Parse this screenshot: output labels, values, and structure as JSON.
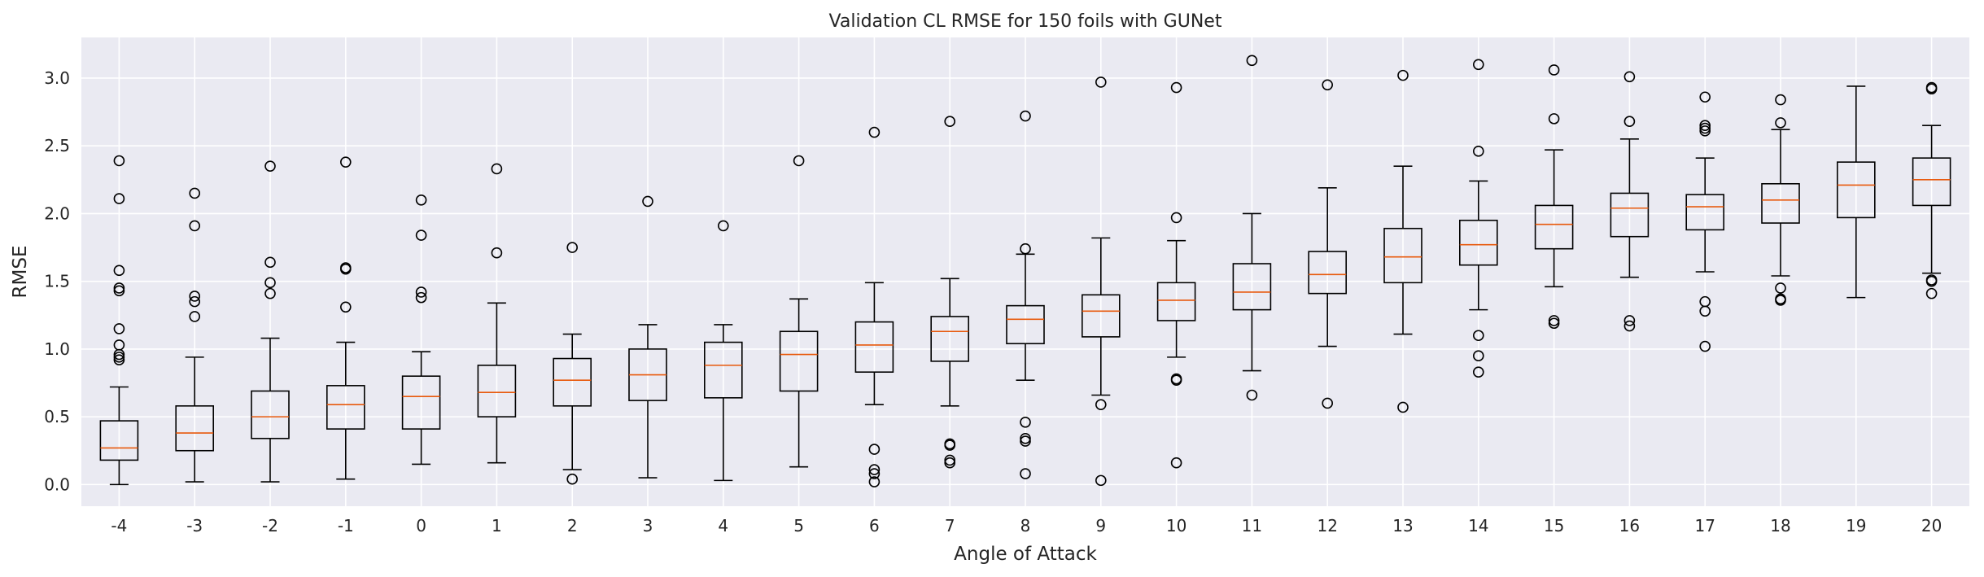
{
  "chart_data": {
    "type": "box",
    "title": "Validation CL RMSE for 150 foils with GUNet",
    "xlabel": "Angle of Attack",
    "ylabel": "RMSE",
    "ylim": [
      -0.16,
      3.3
    ],
    "yticks": [
      "0.0",
      "0.5",
      "1.0",
      "1.5",
      "2.0",
      "2.5",
      "3.0"
    ],
    "grid": true,
    "categories": [
      "-4",
      "-3",
      "-2",
      "-1",
      "0",
      "1",
      "2",
      "3",
      "4",
      "5",
      "6",
      "7",
      "8",
      "9",
      "10",
      "11",
      "12",
      "13",
      "14",
      "15",
      "16",
      "17",
      "18",
      "19",
      "20"
    ],
    "boxes": [
      {
        "whislo": 0.0,
        "q1": 0.18,
        "med": 0.27,
        "q3": 0.47,
        "whishi": 0.72,
        "fliers": [
          0.92,
          0.94,
          0.96,
          1.03,
          1.15,
          1.43,
          1.45,
          1.58,
          2.11,
          2.39
        ]
      },
      {
        "whislo": 0.02,
        "q1": 0.25,
        "med": 0.38,
        "q3": 0.58,
        "whishi": 0.94,
        "fliers": [
          1.24,
          1.35,
          1.39,
          1.91,
          2.15
        ]
      },
      {
        "whislo": 0.02,
        "q1": 0.34,
        "med": 0.5,
        "q3": 0.69,
        "whishi": 1.08,
        "fliers": [
          1.41,
          1.49,
          1.64,
          2.35
        ]
      },
      {
        "whislo": 0.04,
        "q1": 0.41,
        "med": 0.59,
        "q3": 0.73,
        "whishi": 1.05,
        "fliers": [
          1.31,
          1.59,
          1.6,
          2.38
        ]
      },
      {
        "whislo": 0.15,
        "q1": 0.41,
        "med": 0.65,
        "q3": 0.8,
        "whishi": 0.98,
        "fliers": [
          1.38,
          1.42,
          1.84,
          2.1
        ]
      },
      {
        "whislo": 0.16,
        "q1": 0.5,
        "med": 0.68,
        "q3": 0.88,
        "whishi": 1.34,
        "fliers": [
          1.71,
          2.33
        ]
      },
      {
        "whislo": 0.11,
        "q1": 0.58,
        "med": 0.77,
        "q3": 0.93,
        "whishi": 1.11,
        "fliers": [
          0.04,
          1.75
        ]
      },
      {
        "whislo": 0.05,
        "q1": 0.62,
        "med": 0.81,
        "q3": 1.0,
        "whishi": 1.18,
        "fliers": [
          2.09
        ]
      },
      {
        "whislo": 0.03,
        "q1": 0.64,
        "med": 0.88,
        "q3": 1.05,
        "whishi": 1.18,
        "fliers": [
          1.91
        ]
      },
      {
        "whislo": 0.13,
        "q1": 0.69,
        "med": 0.96,
        "q3": 1.13,
        "whishi": 1.37,
        "fliers": [
          2.39
        ]
      },
      {
        "whislo": 0.59,
        "q1": 0.83,
        "med": 1.03,
        "q3": 1.2,
        "whishi": 1.49,
        "fliers": [
          0.02,
          0.08,
          0.11,
          0.26,
          2.6
        ]
      },
      {
        "whislo": 0.58,
        "q1": 0.91,
        "med": 1.13,
        "q3": 1.24,
        "whishi": 1.52,
        "fliers": [
          0.16,
          0.18,
          0.29,
          0.3,
          2.68
        ]
      },
      {
        "whislo": 0.77,
        "q1": 1.04,
        "med": 1.22,
        "q3": 1.32,
        "whishi": 1.7,
        "fliers": [
          0.08,
          0.32,
          0.34,
          0.46,
          1.74,
          2.72
        ]
      },
      {
        "whislo": 0.66,
        "q1": 1.09,
        "med": 1.28,
        "q3": 1.4,
        "whishi": 1.82,
        "fliers": [
          0.03,
          0.59,
          2.97
        ]
      },
      {
        "whislo": 0.94,
        "q1": 1.21,
        "med": 1.36,
        "q3": 1.49,
        "whishi": 1.8,
        "fliers": [
          0.16,
          0.77,
          0.78,
          1.97,
          2.93
        ]
      },
      {
        "whislo": 0.84,
        "q1": 1.29,
        "med": 1.42,
        "q3": 1.63,
        "whishi": 2.0,
        "fliers": [
          0.66,
          3.13
        ]
      },
      {
        "whislo": 1.02,
        "q1": 1.41,
        "med": 1.55,
        "q3": 1.72,
        "whishi": 2.19,
        "fliers": [
          0.6,
          2.95
        ]
      },
      {
        "whislo": 1.11,
        "q1": 1.49,
        "med": 1.68,
        "q3": 1.89,
        "whishi": 2.35,
        "fliers": [
          0.57,
          3.02
        ]
      },
      {
        "whislo": 1.29,
        "q1": 1.62,
        "med": 1.77,
        "q3": 1.95,
        "whishi": 2.24,
        "fliers": [
          0.83,
          0.95,
          1.1,
          2.46,
          3.1
        ]
      },
      {
        "whislo": 1.46,
        "q1": 1.74,
        "med": 1.92,
        "q3": 2.06,
        "whishi": 2.47,
        "fliers": [
          1.19,
          1.21,
          2.7,
          3.06
        ]
      },
      {
        "whislo": 1.53,
        "q1": 1.83,
        "med": 2.04,
        "q3": 2.15,
        "whishi": 2.55,
        "fliers": [
          1.17,
          1.21,
          2.68,
          3.01
        ]
      },
      {
        "whislo": 1.57,
        "q1": 1.88,
        "med": 2.05,
        "q3": 2.14,
        "whishi": 2.41,
        "fliers": [
          1.02,
          1.28,
          1.35,
          2.61,
          2.63,
          2.65,
          2.86
        ]
      },
      {
        "whislo": 1.54,
        "q1": 1.93,
        "med": 2.1,
        "q3": 2.22,
        "whishi": 2.62,
        "fliers": [
          1.36,
          1.37,
          1.45,
          2.67,
          2.84
        ]
      },
      {
        "whislo": 1.38,
        "q1": 1.97,
        "med": 2.21,
        "q3": 2.38,
        "whishi": 2.94,
        "fliers": []
      },
      {
        "whislo": 1.56,
        "q1": 2.06,
        "med": 2.25,
        "q3": 2.41,
        "whishi": 2.65,
        "fliers": [
          1.41,
          1.5,
          1.51,
          2.92,
          2.93
        ]
      }
    ],
    "colors": {
      "plot_background": "#EAEAF2",
      "grid": "#FFFFFF",
      "box": "#000000",
      "median": "#E8590C",
      "text": "#262626"
    }
  }
}
